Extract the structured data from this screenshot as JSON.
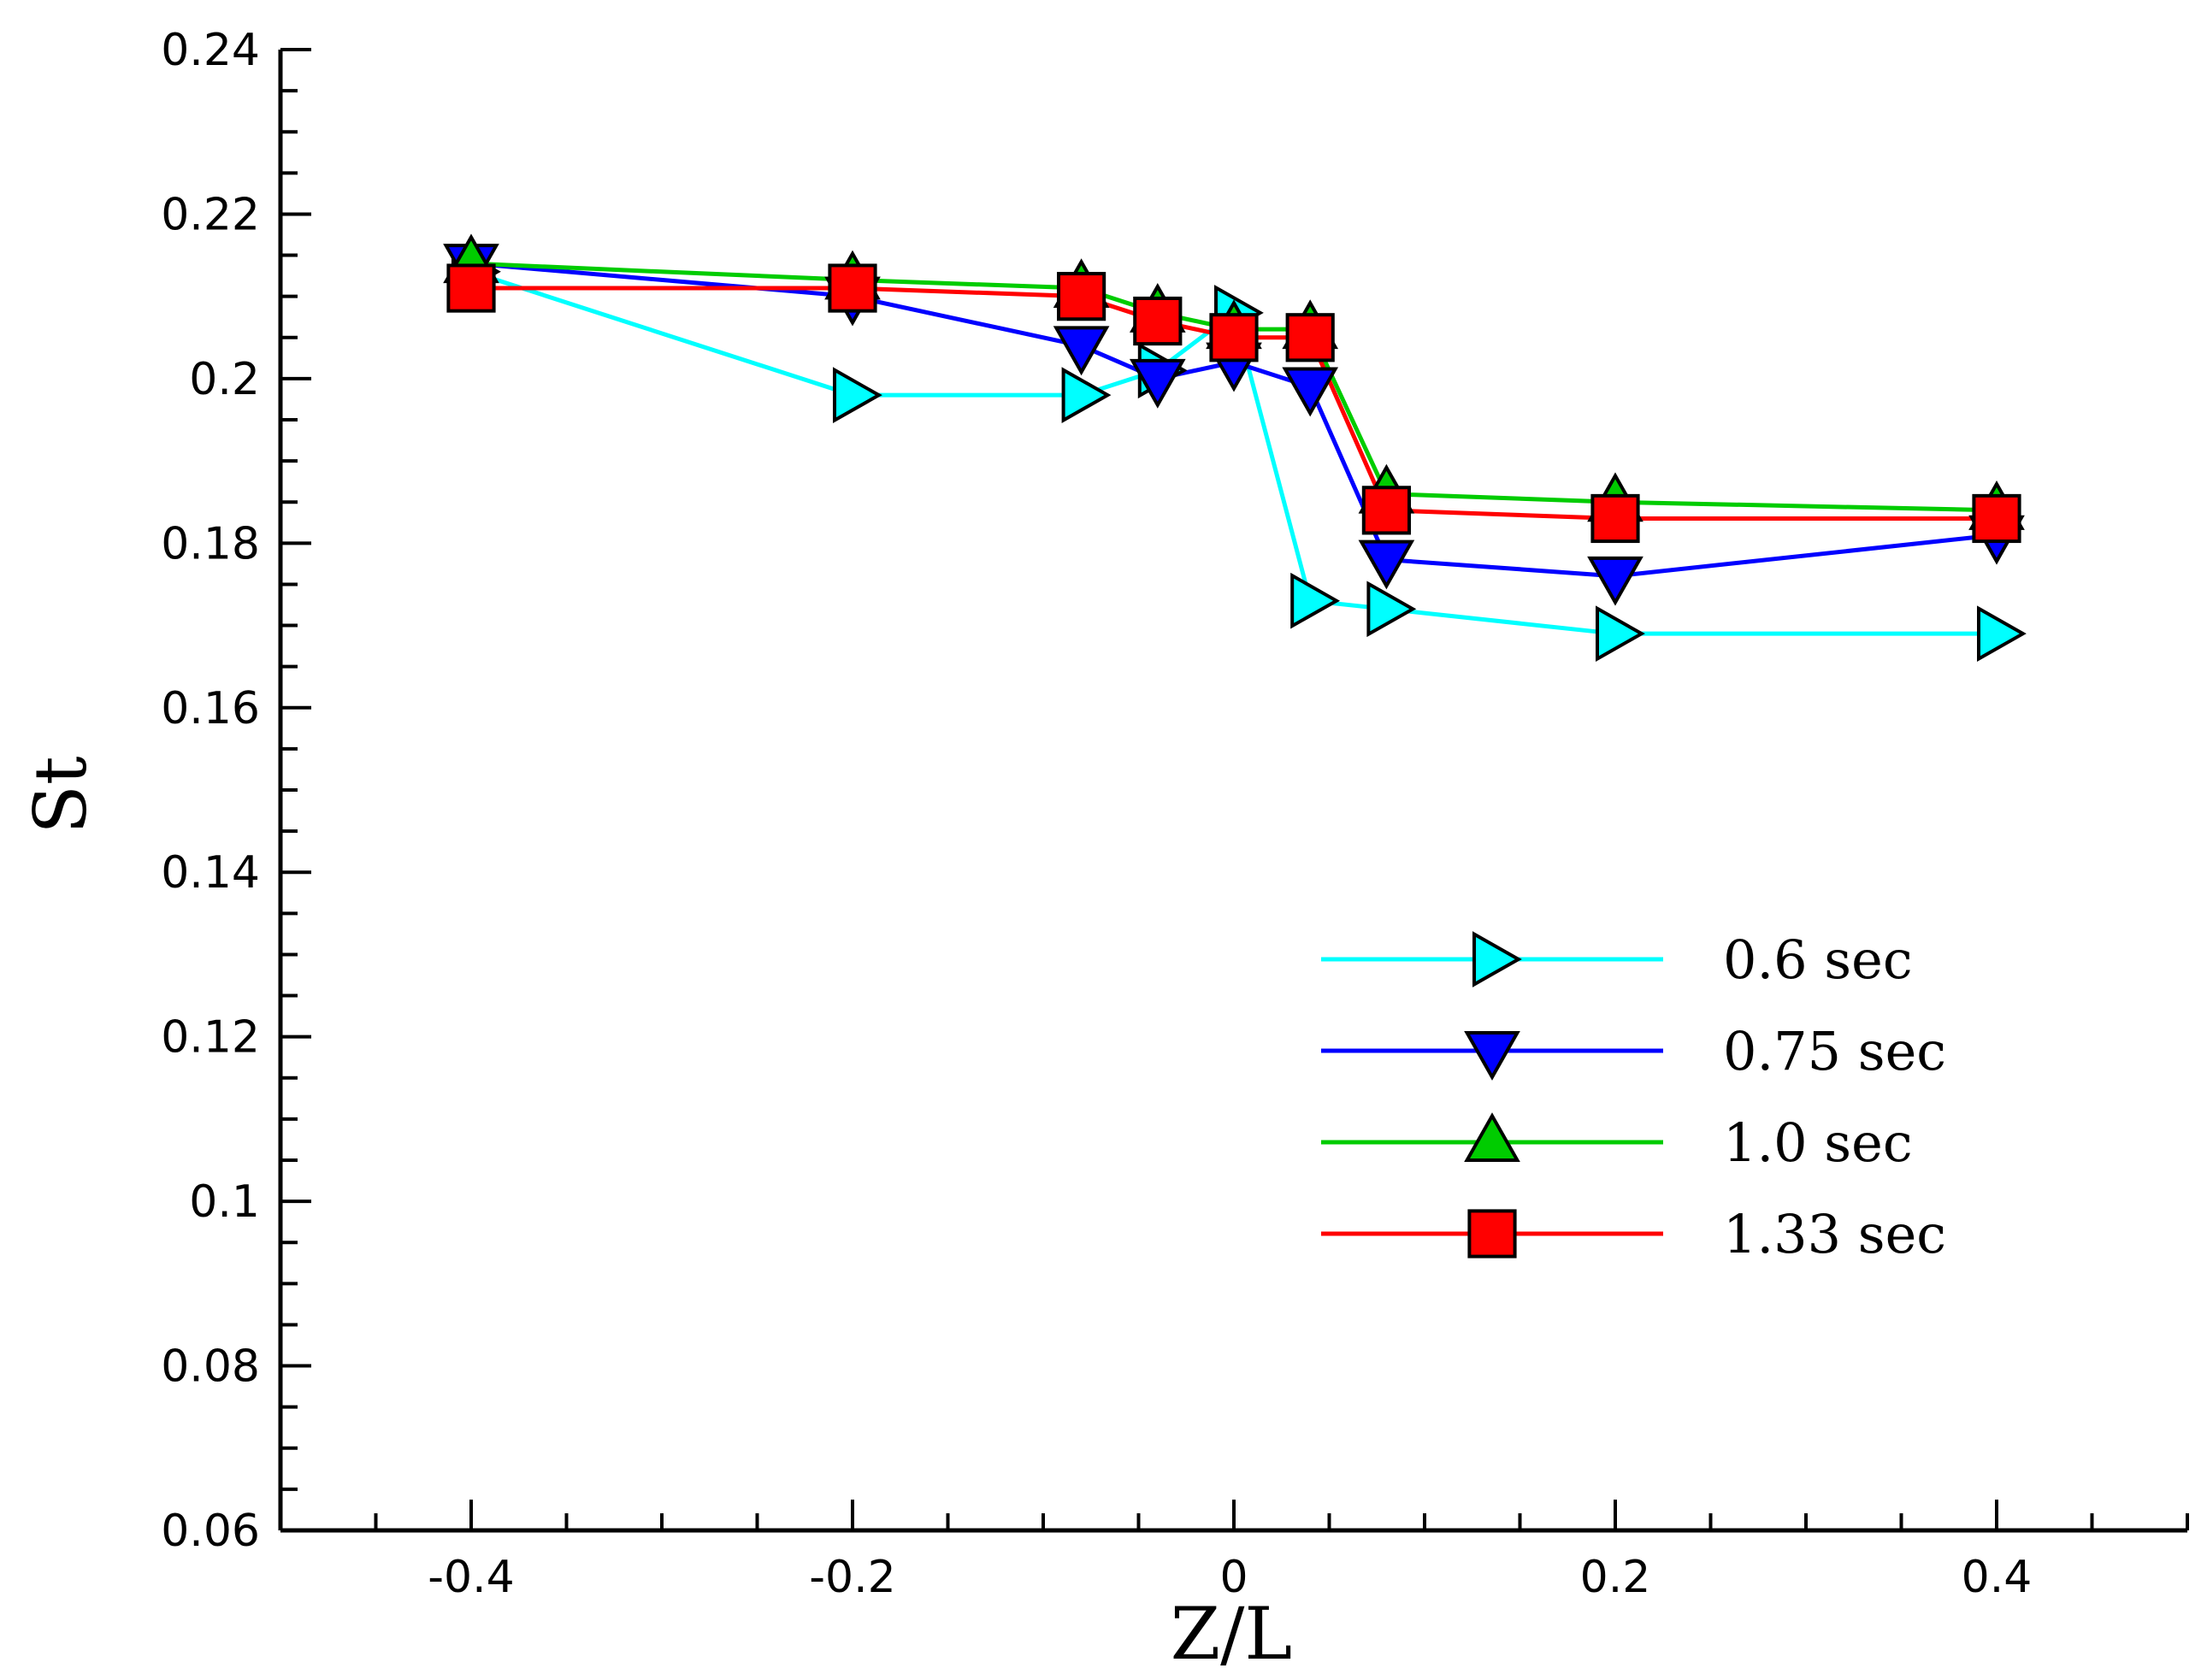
{
  "chart_data": {
    "type": "line",
    "title": "",
    "xlabel": "Z/L",
    "ylabel": "St",
    "xlim": [
      -0.5,
      0.5
    ],
    "ylim": [
      0.06,
      0.24
    ],
    "xticks": [
      -0.4,
      -0.2,
      0,
      0.2,
      0.4
    ],
    "xtick_labels": [
      "-0.4",
      "-0.2",
      "0",
      "0.2",
      "0.4"
    ],
    "yticks": [
      0.06,
      0.08,
      0.1,
      0.12,
      0.14,
      0.16,
      0.18,
      0.2,
      0.22,
      0.24
    ],
    "ytick_labels": [
      "0.06",
      "0.08",
      "0.1",
      "0.12",
      "0.14",
      "0.16",
      "0.18",
      "0.2",
      "0.22",
      "0.24"
    ],
    "x_minor_step": 0.05,
    "y_minor_step": 0.005,
    "grid": false,
    "legend_position": "center-right",
    "series": [
      {
        "name": "0.6 sec",
        "color": "#00ffff",
        "marker": "triangle-right",
        "x": [
          -0.4,
          -0.2,
          -0.08,
          -0.04,
          0,
          0.04,
          0.08,
          0.2,
          0.4
        ],
        "values": [
          0.213,
          0.198,
          0.198,
          0.201,
          0.208,
          0.173,
          0.172,
          0.169,
          0.169
        ]
      },
      {
        "name": "0.75 sec",
        "color": "#0000ff",
        "marker": "triangle-down",
        "x": [
          -0.4,
          -0.2,
          -0.08,
          -0.04,
          0,
          0.04,
          0.08,
          0.2,
          0.4
        ],
        "values": [
          0.214,
          0.21,
          0.204,
          0.2,
          0.202,
          0.199,
          0.178,
          0.176,
          0.181
        ]
      },
      {
        "name": "1.0 sec",
        "color": "#00cc00",
        "marker": "triangle-up",
        "x": [
          -0.4,
          -0.2,
          -0.08,
          -0.04,
          0,
          0.04,
          0.08,
          0.2,
          0.4
        ],
        "values": [
          0.214,
          0.212,
          0.211,
          0.208,
          0.206,
          0.206,
          0.186,
          0.185,
          0.184
        ]
      },
      {
        "name": "1.33 sec",
        "color": "#ff0000",
        "marker": "square",
        "x": [
          -0.4,
          -0.2,
          -0.08,
          -0.04,
          0,
          0.04,
          0.08,
          0.2,
          0.4
        ],
        "values": [
          0.211,
          0.211,
          0.21,
          0.207,
          0.205,
          0.205,
          0.184,
          0.183,
          0.183
        ]
      }
    ]
  }
}
